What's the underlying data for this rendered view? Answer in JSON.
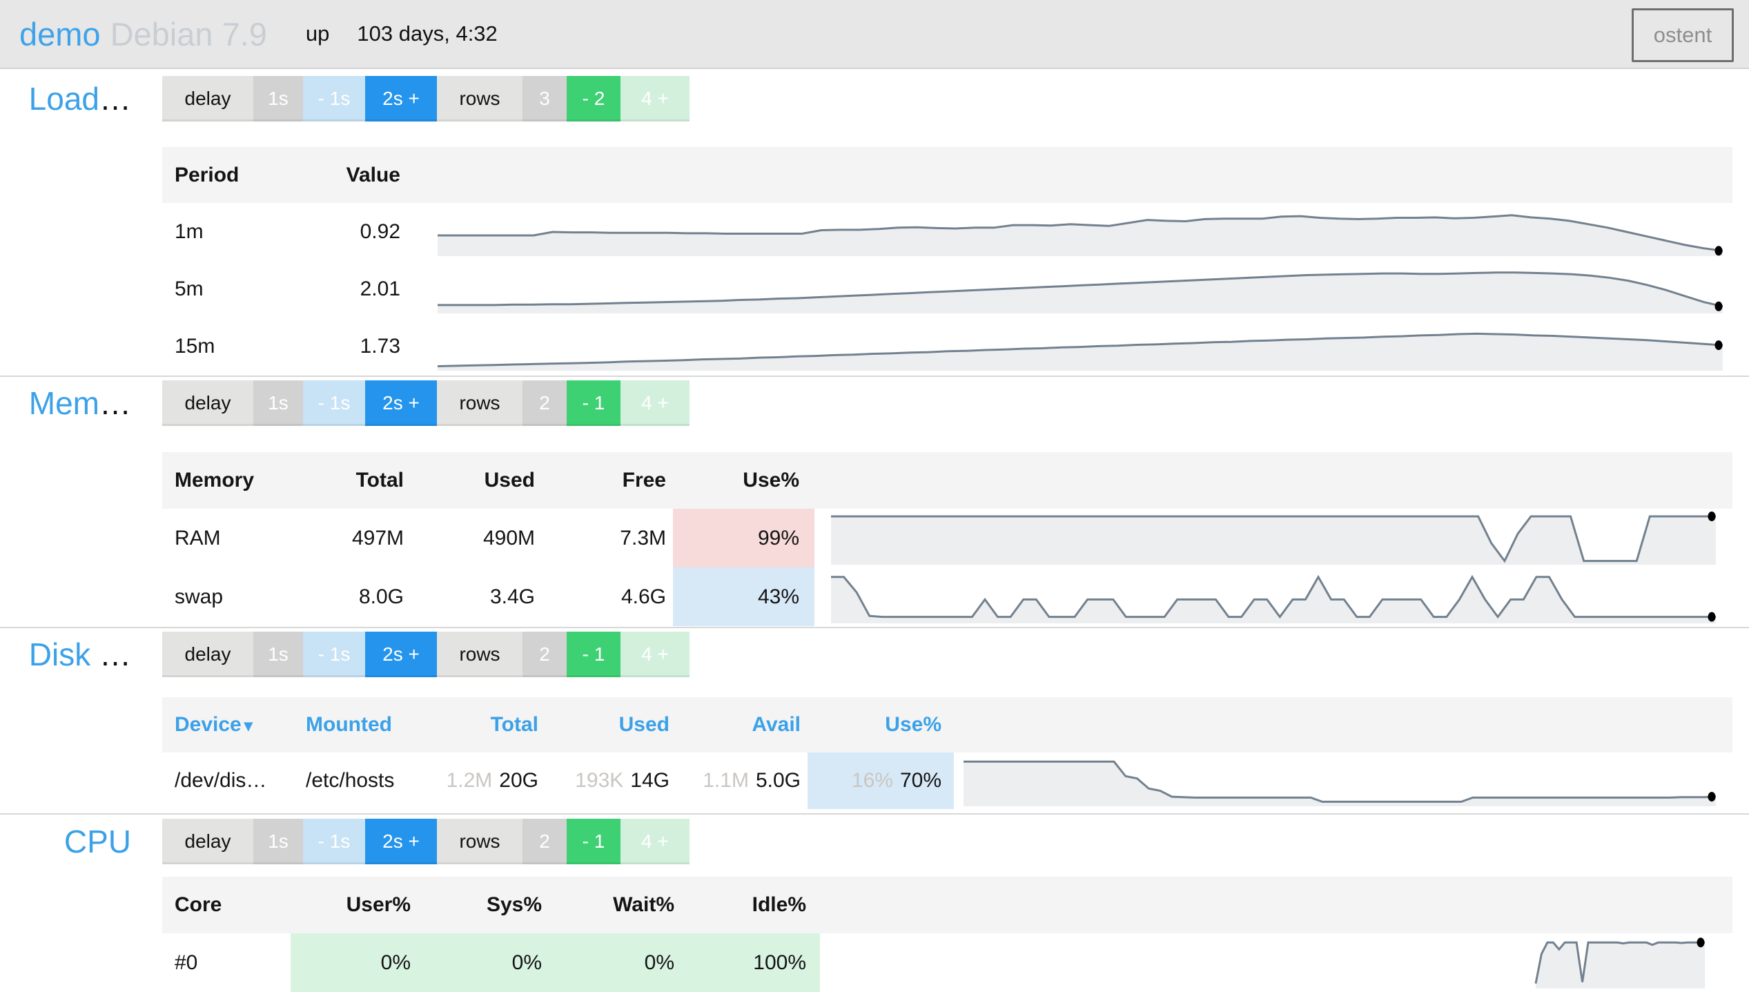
{
  "header": {
    "host": "demo",
    "os": "Debian 7.9",
    "up_label": "up",
    "uptime": "103 days,  4:32",
    "brand_button": "ostent"
  },
  "controls": {
    "delay_label": "delay",
    "delay_options": [
      "1s",
      "- 1s",
      "2s +"
    ],
    "rows_label": "rows"
  },
  "sections": {
    "load": {
      "title": "Load",
      "suffix": "…",
      "rowctl": {
        "count": "3",
        "minus": "- 2",
        "plus": "4 +"
      },
      "table": {
        "headers": [
          "Period",
          "Value"
        ],
        "rows": [
          {
            "period": "1m",
            "value": "0.92"
          },
          {
            "period": "5m",
            "value": "2.01"
          },
          {
            "period": "15m",
            "value": "1.73"
          }
        ]
      }
    },
    "mem": {
      "title": "Mem",
      "suffix": "…",
      "rowctl": {
        "count": "2",
        "minus": "- 1",
        "plus": "4 +"
      },
      "table": {
        "headers": [
          "Memory",
          "Total",
          "Used",
          "Free",
          "Use%"
        ],
        "rows": [
          {
            "name": "RAM",
            "total": "497M",
            "used": "490M",
            "free": "7.3M",
            "use": "99%",
            "tone": "danger"
          },
          {
            "name": "swap",
            "total": "8.0G",
            "used": "3.4G",
            "free": "4.6G",
            "use": "43%",
            "tone": "info"
          }
        ]
      }
    },
    "disk": {
      "title": "Disk",
      "suffix": " …",
      "rowctl": {
        "count": "2",
        "minus": "- 1",
        "plus": "4 +"
      },
      "table": {
        "headers": [
          "Device",
          "Mounted",
          "Total",
          "Used",
          "Avail",
          "Use%"
        ],
        "sort_caret": "▾",
        "row": {
          "device": "/dev/dis…",
          "mounted": "/etc/hosts",
          "total_shadow": "1.2M",
          "total": "20G",
          "used_shadow": "193K",
          "used": "14G",
          "avail_shadow": "1.1M",
          "avail": "5.0G",
          "use_shadow": "16%",
          "use": "70%"
        }
      }
    },
    "cpu": {
      "title": "CPU",
      "suffix": "",
      "rowctl": {
        "count": "2",
        "minus": "- 1",
        "plus": "4 +"
      },
      "table": {
        "headers": [
          "Core",
          "User%",
          "Sys%",
          "Wait%",
          "Idle%"
        ],
        "row": {
          "core": "#0",
          "user": "0%",
          "sys": "0%",
          "wait": "0%",
          "idle": "100%"
        }
      }
    }
  },
  "colors": {
    "accent_blue": "#3ba1e8",
    "btn_blue": "#2494ec",
    "btn_green": "#3ed173",
    "danger_bg": "#f6dbda",
    "info_bg": "#d7e9f7",
    "green_bg": "#d9f3e1",
    "spark_stroke": "#72818f",
    "spark_fill": "#edeef0",
    "spark_dot": "#000000"
  },
  "sparklines": {
    "load_1m": [
      0.42,
      0.42,
      0.42,
      0.42,
      0.42,
      0.42,
      0.5,
      0.49,
      0.49,
      0.48,
      0.48,
      0.48,
      0.48,
      0.47,
      0.47,
      0.46,
      0.46,
      0.46,
      0.46,
      0.46,
      0.54,
      0.55,
      0.55,
      0.57,
      0.6,
      0.61,
      0.59,
      0.58,
      0.6,
      0.6,
      0.66,
      0.66,
      0.65,
      0.68,
      0.66,
      0.64,
      0.71,
      0.78,
      0.76,
      0.75,
      0.8,
      0.81,
      0.81,
      0.81,
      0.86,
      0.87,
      0.83,
      0.81,
      0.8,
      0.81,
      0.83,
      0.83,
      0.84,
      0.82,
      0.83,
      0.86,
      0.89,
      0.84,
      0.81,
      0.76,
      0.68,
      0.6,
      0.5,
      0.4,
      0.3,
      0.2,
      0.12,
      0.06
    ],
    "load_5m": [
      0.13,
      0.13,
      0.13,
      0.13,
      0.14,
      0.14,
      0.15,
      0.15,
      0.16,
      0.17,
      0.18,
      0.19,
      0.2,
      0.21,
      0.22,
      0.23,
      0.25,
      0.26,
      0.28,
      0.29,
      0.31,
      0.33,
      0.35,
      0.37,
      0.39,
      0.41,
      0.43,
      0.45,
      0.47,
      0.49,
      0.51,
      0.53,
      0.55,
      0.57,
      0.59,
      0.61,
      0.63,
      0.65,
      0.67,
      0.69,
      0.71,
      0.73,
      0.75,
      0.77,
      0.79,
      0.81,
      0.83,
      0.84,
      0.85,
      0.86,
      0.87,
      0.87,
      0.86,
      0.86,
      0.87,
      0.88,
      0.89,
      0.89,
      0.88,
      0.87,
      0.85,
      0.82,
      0.77,
      0.7,
      0.6,
      0.48,
      0.34,
      0.2,
      0.1
    ],
    "load_15m": [
      0.04,
      0.05,
      0.06,
      0.07,
      0.08,
      0.09,
      0.1,
      0.11,
      0.12,
      0.13,
      0.15,
      0.16,
      0.17,
      0.18,
      0.2,
      0.21,
      0.22,
      0.24,
      0.25,
      0.27,
      0.28,
      0.3,
      0.31,
      0.33,
      0.34,
      0.36,
      0.37,
      0.39,
      0.4,
      0.42,
      0.43,
      0.45,
      0.46,
      0.48,
      0.49,
      0.51,
      0.52,
      0.54,
      0.55,
      0.57,
      0.58,
      0.6,
      0.61,
      0.63,
      0.64,
      0.66,
      0.67,
      0.69,
      0.7,
      0.71,
      0.73,
      0.74,
      0.76,
      0.77,
      0.79,
      0.8,
      0.79,
      0.78,
      0.76,
      0.75,
      0.73,
      0.71,
      0.69,
      0.67,
      0.65,
      0.62,
      0.59,
      0.56,
      0.53
    ],
    "mem_ram": [
      0.97,
      0.97,
      0.97,
      0.97,
      0.97,
      0.97,
      0.97,
      0.97,
      0.97,
      0.97,
      0.97,
      0.97,
      0.97,
      0.97,
      0.97,
      0.97,
      0.97,
      0.97,
      0.97,
      0.97,
      0.97,
      0.97,
      0.97,
      0.97,
      0.97,
      0.97,
      0.97,
      0.97,
      0.97,
      0.97,
      0.97,
      0.97,
      0.97,
      0.97,
      0.97,
      0.97,
      0.97,
      0.97,
      0.97,
      0.97,
      0.97,
      0.97,
      0.97,
      0.97,
      0.97,
      0.97,
      0.97,
      0.97,
      0.97,
      0.97,
      0.4,
      0.02,
      0.6,
      0.97,
      0.97,
      0.97,
      0.97,
      0.02,
      0.02,
      0.02,
      0.02,
      0.02,
      0.97,
      0.97,
      0.97,
      0.97,
      0.97,
      0.97
    ],
    "mem_swap": [
      0.93,
      0.93,
      0.6,
      0.1,
      0.08,
      0.08,
      0.08,
      0.08,
      0.08,
      0.08,
      0.08,
      0.08,
      0.45,
      0.08,
      0.08,
      0.45,
      0.45,
      0.08,
      0.08,
      0.08,
      0.45,
      0.45,
      0.45,
      0.08,
      0.08,
      0.08,
      0.08,
      0.45,
      0.45,
      0.45,
      0.45,
      0.08,
      0.08,
      0.45,
      0.45,
      0.08,
      0.45,
      0.45,
      0.93,
      0.45,
      0.45,
      0.08,
      0.08,
      0.45,
      0.45,
      0.45,
      0.45,
      0.08,
      0.08,
      0.45,
      0.93,
      0.45,
      0.08,
      0.45,
      0.45,
      0.93,
      0.93,
      0.45,
      0.08,
      0.08,
      0.08,
      0.08,
      0.08,
      0.08,
      0.08,
      0.08,
      0.08,
      0.08,
      0.08,
      0.08
    ],
    "disk": [
      0.92,
      0.92,
      0.92,
      0.92,
      0.92,
      0.92,
      0.92,
      0.92,
      0.92,
      0.92,
      0.92,
      0.92,
      0.92,
      0.92,
      0.6,
      0.55,
      0.33,
      0.28,
      0.15,
      0.14,
      0.13,
      0.13,
      0.13,
      0.13,
      0.13,
      0.13,
      0.13,
      0.13,
      0.13,
      0.13,
      0.13,
      0.04,
      0.04,
      0.04,
      0.04,
      0.04,
      0.04,
      0.04,
      0.04,
      0.04,
      0.04,
      0.04,
      0.04,
      0.04,
      0.13,
      0.13,
      0.13,
      0.13,
      0.13,
      0.13,
      0.13,
      0.13,
      0.13,
      0.13,
      0.13,
      0.13,
      0.13,
      0.13,
      0.13,
      0.13,
      0.13,
      0.13,
      0.14,
      0.14,
      0.14,
      0.15
    ],
    "cpu_idle": [
      0.05,
      0.7,
      0.95,
      0.95,
      0.8,
      0.95,
      0.95,
      0.95,
      0.08,
      0.95,
      0.95,
      0.95,
      0.95,
      0.95,
      0.95,
      0.93,
      0.95,
      0.95,
      0.95,
      0.95,
      0.9,
      0.95,
      0.95,
      0.95,
      0.95,
      0.94,
      0.95,
      0.95,
      0.95,
      0.95
    ]
  }
}
